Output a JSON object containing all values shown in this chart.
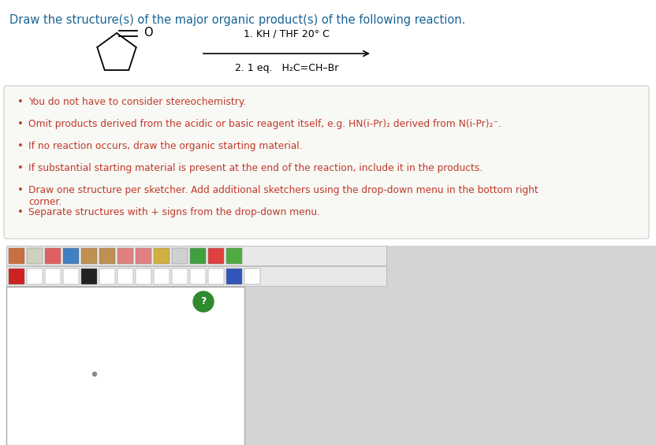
{
  "title": "Draw the structure(s) of the major organic product(s) of the following reaction.",
  "title_color": "#1a6496",
  "title_fontsize": 10.5,
  "bg_color": "#ffffff",
  "reagent_line1": "1. KH / THF 20° C",
  "reagent_line2": "2. 1 eq.   H₂C=CH–Br",
  "bullet_color": "#c0392b",
  "bullets": [
    "You do not have to consider stereochemistry.",
    "Omit products derived from the acidic or basic reagent itself, e.g. HN(i-Pr)₂ derived from N(i-Pr)₂⁻.",
    "If no reaction occurs, draw the organic starting material.",
    "If substantial starting material is present at the end of the reaction, include it in the products.",
    "Draw one structure per sketcher. Add additional sketchers using the drop-down menu in the bottom right\n        corner.",
    "Separate structures with + signs from the drop-down menu."
  ],
  "box_bg": "#f8f8f4",
  "box_border": "#cccccc",
  "sketcher_bg": "#ffffff",
  "sketcher_border": "#aaaaaa",
  "gray_area_bg": "#d4d4d4"
}
